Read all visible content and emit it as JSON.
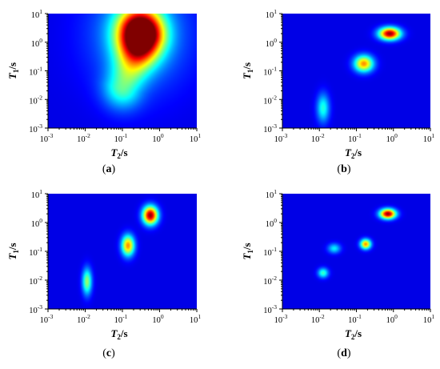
{
  "chart_data": [
    {
      "type": "heatmap",
      "caption": "(a)",
      "xlabel": "T2/s",
      "ylabel": "T1/s",
      "x_ticks": [
        "10^-3",
        "10^-2",
        "10^-1",
        "10^0",
        "10^1"
      ],
      "y_ticks": [
        "10^-3",
        "10^-2",
        "10^-1",
        "10^0",
        "10^1"
      ],
      "x_range_log10": [
        -3,
        1
      ],
      "y_range_log10": [
        -3,
        1
      ],
      "log_scale": true,
      "colormap": "jet",
      "background_color": "#0000a8",
      "peaks": [
        {
          "log_t2": -0.55,
          "log_t1": 0.3,
          "amplitude": 1.0,
          "sigma_log_t2": 0.42,
          "sigma_log_t1": 0.62
        }
      ],
      "diffuse_band": {
        "from": [
          -1.0,
          -1.6
        ],
        "to": [
          -0.4,
          0.2
        ],
        "amplitude": 0.35
      }
    },
    {
      "type": "heatmap",
      "caption": "(b)",
      "xlabel": "T2/s",
      "ylabel": "T1/s",
      "x_ticks": [
        "10^-3",
        "10^-2",
        "10^-1",
        "10^0",
        "10^1"
      ],
      "y_ticks": [
        "10^-3",
        "10^-2",
        "10^-1",
        "10^0",
        "10^1"
      ],
      "x_range_log10": [
        -3,
        1
      ],
      "y_range_log10": [
        -3,
        1
      ],
      "log_scale": true,
      "colormap": "jet",
      "background_color": "#0000a8",
      "peaks": [
        {
          "log_t2": -0.1,
          "log_t1": 0.3,
          "amplitude": 1.0,
          "sigma_log_t2": 0.2,
          "sigma_log_t1": 0.15
        },
        {
          "log_t2": -0.8,
          "log_t1": -0.75,
          "amplitude": 0.72,
          "sigma_log_t2": 0.18,
          "sigma_log_t1": 0.2
        },
        {
          "log_t2": -1.9,
          "log_t1": -2.3,
          "amplitude": 0.35,
          "sigma_log_t2": 0.12,
          "sigma_log_t1": 0.35
        }
      ]
    },
    {
      "type": "heatmap",
      "caption": "(c)",
      "xlabel": "T2/s",
      "ylabel": "T1/s",
      "x_ticks": [
        "10^-3",
        "10^-2",
        "10^-1",
        "10^0",
        "10^1"
      ],
      "y_ticks": [
        "10^-3",
        "10^-2",
        "10^-1",
        "10^0",
        "10^1"
      ],
      "x_range_log10": [
        -3,
        1
      ],
      "y_range_log10": [
        -3,
        1
      ],
      "log_scale": true,
      "colormap": "jet",
      "background_color": "#0000a8",
      "peaks": [
        {
          "log_t2": -0.25,
          "log_t1": 0.25,
          "amplitude": 1.0,
          "sigma_log_t2": 0.14,
          "sigma_log_t1": 0.22
        },
        {
          "log_t2": -0.85,
          "log_t1": -0.8,
          "amplitude": 0.72,
          "sigma_log_t2": 0.12,
          "sigma_log_t1": 0.25
        },
        {
          "log_t2": -1.95,
          "log_t1": -2.05,
          "amplitude": 0.48,
          "sigma_log_t2": 0.09,
          "sigma_log_t1": 0.32
        }
      ]
    },
    {
      "type": "heatmap",
      "caption": "(d)",
      "xlabel": "T2/s",
      "ylabel": "T1/s",
      "x_ticks": [
        "10^-3",
        "10^-2",
        "10^-1",
        "10^0",
        "10^1"
      ],
      "y_ticks": [
        "10^-3",
        "10^-2",
        "10^-1",
        "10^0",
        "10^1"
      ],
      "x_range_log10": [
        -3,
        1
      ],
      "y_range_log10": [
        -3,
        1
      ],
      "log_scale": true,
      "colormap": "jet",
      "background_color": "#0000a8",
      "peaks": [
        {
          "log_t2": -0.15,
          "log_t1": 0.3,
          "amplitude": 1.0,
          "sigma_log_t2": 0.15,
          "sigma_log_t1": 0.12
        },
        {
          "log_t2": -0.75,
          "log_t1": -0.75,
          "amplitude": 0.72,
          "sigma_log_t2": 0.1,
          "sigma_log_t1": 0.12
        },
        {
          "log_t2": -1.6,
          "log_t1": -0.9,
          "amplitude": 0.3,
          "sigma_log_t2": 0.12,
          "sigma_log_t1": 0.12
        },
        {
          "log_t2": -1.9,
          "log_t1": -1.75,
          "amplitude": 0.38,
          "sigma_log_t2": 0.1,
          "sigma_log_t1": 0.12
        }
      ]
    }
  ]
}
